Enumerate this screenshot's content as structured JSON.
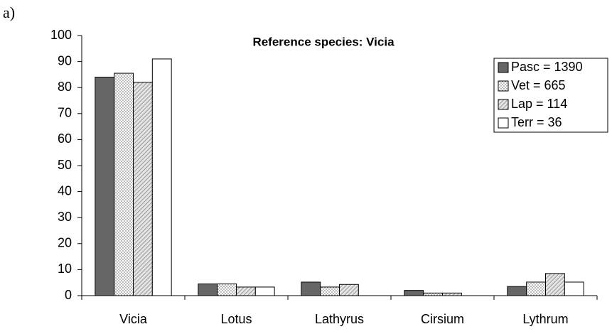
{
  "chart_data": {
    "type": "bar",
    "panel_label": "a)",
    "title": "Reference species: Vicia",
    "categories": [
      "Vicia",
      "Lotus",
      "Lathyrus",
      "Cirsium",
      "Lythrum"
    ],
    "series": [
      {
        "name": "Pasc = 1390",
        "color": "#666666",
        "pattern": "solid",
        "values": [
          84,
          4.5,
          5.2,
          2,
          3.5
        ]
      },
      {
        "name": "Vet = 665",
        "color": "#ffffff",
        "pattern": "dots",
        "values": [
          85.5,
          4.5,
          3.3,
          1,
          5.2
        ]
      },
      {
        "name": "Lap = 114",
        "color": "#d0d0d0",
        "pattern": "hatch",
        "values": [
          82,
          3.3,
          4.3,
          1,
          8.5
        ]
      },
      {
        "name": "Terr = 36",
        "color": "#ffffff",
        "pattern": "solid",
        "values": [
          91,
          3.3,
          0,
          0,
          5.2
        ]
      }
    ],
    "ylim": [
      0,
      100
    ],
    "yticks": [
      0,
      10,
      20,
      30,
      40,
      50,
      60,
      70,
      80,
      90,
      100
    ],
    "grid": false,
    "legend": "top-right"
  }
}
